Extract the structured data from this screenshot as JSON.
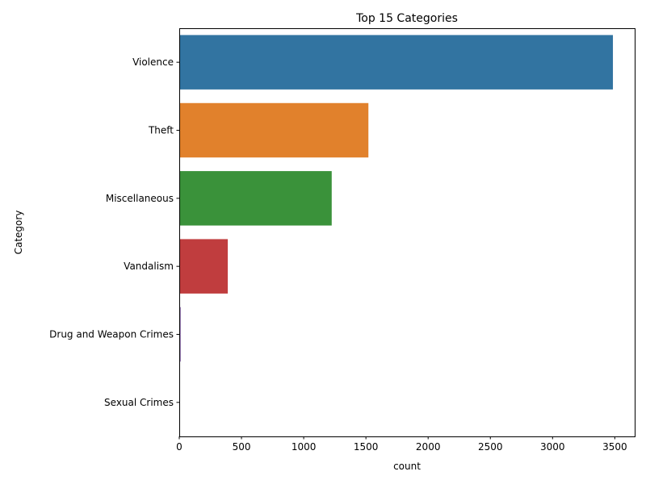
{
  "chart_data": {
    "type": "bar",
    "orientation": "horizontal",
    "title": "Top 15 Categories",
    "xlabel": "count",
    "ylabel": "Category",
    "categories": [
      "Violence",
      "Theft",
      "Miscellaneous",
      "Vandalism",
      "Drug and Weapon Crimes",
      "Sexual Crimes"
    ],
    "values": [
      3485,
      1520,
      1225,
      390,
      12,
      3
    ],
    "colors": [
      "#3274a1",
      "#e1812c",
      "#3a923a",
      "#c03d3e",
      "#9372b2",
      "#845b53"
    ],
    "xlim": [
      0,
      3660
    ],
    "xticks": [
      0,
      500,
      1000,
      1500,
      2000,
      2500,
      3000,
      3500
    ],
    "xtick_labels": [
      "0",
      "500",
      "1000",
      "1500",
      "2000",
      "2500",
      "3000",
      "3500"
    ],
    "grid": false,
    "legend": "none"
  }
}
